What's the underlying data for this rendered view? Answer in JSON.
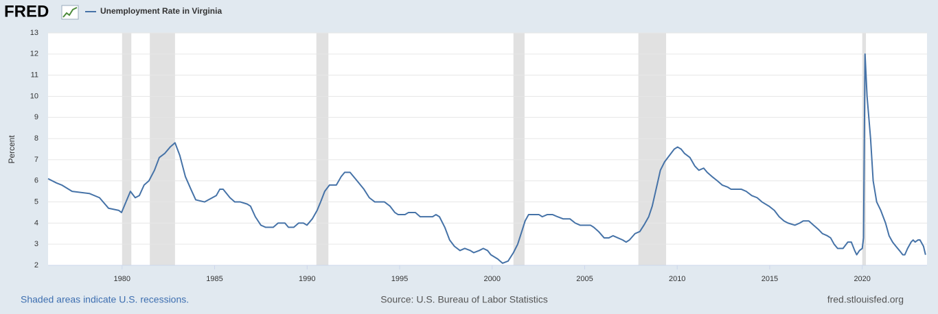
{
  "logo": "FRED",
  "chart_data": {
    "type": "line",
    "ylabel": "Percent",
    "xlim": [
      1976,
      2023.5
    ],
    "xticks": [
      1980,
      1985,
      1990,
      1995,
      2000,
      2005,
      2010,
      2015,
      2020
    ],
    "ylim": [
      2,
      13
    ],
    "yticks": [
      2,
      3,
      4,
      5,
      6,
      7,
      8,
      9,
      10,
      11,
      12,
      13
    ],
    "grid": true,
    "legend": "top-left",
    "recession_color": "#e1e1e1",
    "recessions": [
      [
        1980.0,
        1980.5
      ],
      [
        1981.5,
        1982.86
      ],
      [
        1990.5,
        1991.15
      ],
      [
        2001.15,
        2001.75
      ],
      [
        2007.9,
        2009.4
      ],
      [
        2020.0,
        2020.2
      ]
    ],
    "x": [
      1976.0,
      1976.45,
      1976.74,
      1977.3,
      1978.23,
      1978.78,
      1979.27,
      1979.82,
      1979.97,
      1980.45,
      1980.71,
      1980.93,
      1981.19,
      1981.45,
      1981.75,
      1982.01,
      1982.31,
      1982.6,
      1982.86,
      1983.12,
      1983.42,
      1983.72,
      1983.98,
      1984.46,
      1985.09,
      1985.28,
      1985.46,
      1985.83,
      1986.09,
      1986.39,
      1986.76,
      1986.94,
      1987.2,
      1987.5,
      1987.76,
      1988.17,
      1988.43,
      1988.8,
      1988.99,
      1989.28,
      1989.54,
      1989.8,
      1989.99,
      1990.28,
      1990.54,
      1990.73,
      1990.95,
      1991.21,
      1991.58,
      1991.84,
      1992.03,
      1992.32,
      1992.7,
      1993.07,
      1993.36,
      1993.66,
      1994.18,
      1994.48,
      1994.74,
      1994.92,
      1995.29,
      1995.48,
      1995.85,
      1996.11,
      1996.78,
      1996.96,
      1997.15,
      1997.44,
      1997.7,
      1997.96,
      1998.26,
      1998.52,
      1998.82,
      1999.0,
      1999.3,
      1999.52,
      1999.75,
      1999.93,
      2000.3,
      2000.56,
      2000.86,
      2001.15,
      2001.38,
      2001.6,
      2001.78,
      2001.97,
      2002.53,
      2002.71,
      2002.97,
      2003.27,
      2003.53,
      2003.83,
      2004.2,
      2004.49,
      2004.75,
      2005.31,
      2005.49,
      2005.75,
      2006.05,
      2006.31,
      2006.53,
      2006.79,
      2007.05,
      2007.24,
      2007.42,
      2007.72,
      2007.98,
      2008.2,
      2008.46,
      2008.65,
      2008.91,
      2009.09,
      2009.32,
      2009.58,
      2009.84,
      2010.02,
      2010.21,
      2010.39,
      2010.69,
      2010.95,
      2011.17,
      2011.43,
      2011.62,
      2011.88,
      2012.17,
      2012.43,
      2012.73,
      2012.91,
      2013.47,
      2013.73,
      2014.03,
      2014.32,
      2014.58,
      2014.96,
      2015.25,
      2015.51,
      2015.77,
      2015.99,
      2016.36,
      2016.62,
      2016.81,
      2017.11,
      2017.37,
      2017.63,
      2017.85,
      2018.11,
      2018.29,
      2018.48,
      2018.67,
      2018.96,
      2019.22,
      2019.41,
      2019.59,
      2019.7,
      2019.85,
      2020.0,
      2020.07,
      2020.15,
      2020.26,
      2020.45,
      2020.59,
      2020.78,
      2021.0,
      2021.26,
      2021.45,
      2021.64,
      2021.82,
      2022.01,
      2022.19,
      2022.3,
      2022.45,
      2022.64,
      2022.75,
      2022.86,
      2023.01,
      2023.12,
      2023.31,
      2023.42
    ],
    "series": [
      {
        "name": "Unemployment Rate in Virginia",
        "color": "#4572a7",
        "values": [
          6.1,
          5.9,
          5.8,
          5.5,
          5.4,
          5.2,
          4.7,
          4.6,
          4.5,
          5.5,
          5.2,
          5.3,
          5.8,
          6.0,
          6.5,
          7.1,
          7.3,
          7.6,
          7.8,
          7.2,
          6.2,
          5.6,
          5.1,
          5.0,
          5.3,
          5.6,
          5.6,
          5.2,
          5.0,
          5.0,
          4.9,
          4.8,
          4.3,
          3.9,
          3.8,
          3.8,
          4.0,
          4.0,
          3.8,
          3.8,
          4.0,
          4.0,
          3.9,
          4.2,
          4.6,
          5.0,
          5.5,
          5.8,
          5.8,
          6.2,
          6.4,
          6.4,
          6.0,
          5.6,
          5.2,
          5.0,
          5.0,
          4.8,
          4.5,
          4.4,
          4.4,
          4.5,
          4.5,
          4.3,
          4.3,
          4.4,
          4.3,
          3.8,
          3.2,
          2.9,
          2.7,
          2.8,
          2.7,
          2.6,
          2.7,
          2.8,
          2.7,
          2.5,
          2.3,
          2.1,
          2.2,
          2.6,
          3.0,
          3.6,
          4.1,
          4.4,
          4.4,
          4.3,
          4.4,
          4.4,
          4.3,
          4.2,
          4.2,
          4.0,
          3.9,
          3.9,
          3.8,
          3.6,
          3.3,
          3.3,
          3.4,
          3.3,
          3.2,
          3.1,
          3.2,
          3.5,
          3.6,
          3.9,
          4.3,
          4.8,
          5.8,
          6.5,
          6.9,
          7.2,
          7.5,
          7.6,
          7.5,
          7.3,
          7.1,
          6.7,
          6.5,
          6.6,
          6.4,
          6.2,
          6.0,
          5.8,
          5.7,
          5.6,
          5.6,
          5.5,
          5.3,
          5.2,
          5.0,
          4.8,
          4.6,
          4.3,
          4.1,
          4.0,
          3.9,
          4.0,
          4.1,
          4.1,
          3.9,
          3.7,
          3.5,
          3.4,
          3.3,
          3.0,
          2.8,
          2.8,
          3.1,
          3.1,
          2.7,
          2.5,
          2.7,
          2.8,
          3.3,
          12.0,
          10.0,
          8.0,
          6.0,
          5.0,
          4.6,
          4.0,
          3.4,
          3.1,
          2.9,
          2.7,
          2.5,
          2.5,
          2.8,
          3.1,
          3.2,
          3.1,
          3.2,
          3.2,
          2.9,
          2.5
        ]
      }
    ],
    "footer_left": "Shaded areas indicate U.S. recessions.",
    "footer_center": "Source: U.S. Bureau of Labor Statistics",
    "footer_right": "fred.stlouisfed.org"
  }
}
